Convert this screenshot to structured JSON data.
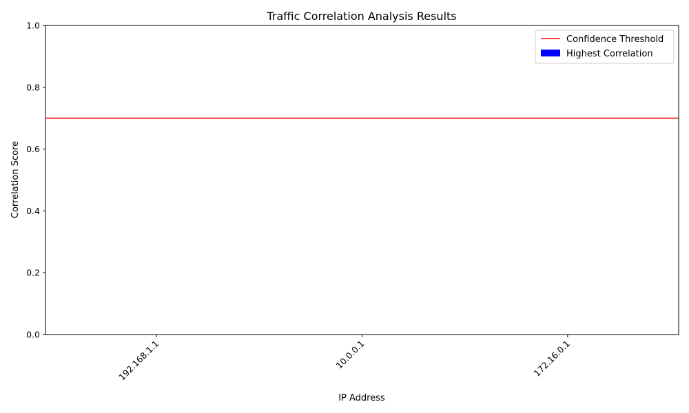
{
  "chart_data": {
    "type": "bar",
    "title": "Traffic Correlation Analysis Results",
    "xlabel": "IP Address",
    "ylabel": "Correlation Score",
    "categories": [
      "192.168.1.1",
      "10.0.0.1",
      "172.16.0.1"
    ],
    "series": [
      {
        "name": "Highest Correlation",
        "values": [
          0,
          0,
          0
        ],
        "color": "#0000ff"
      }
    ],
    "threshold": {
      "name": "Confidence Threshold",
      "value": 0.7,
      "color": "#ff0000"
    },
    "ylim": [
      0,
      1
    ],
    "yticks": [
      "0.0",
      "0.2",
      "0.4",
      "0.6",
      "0.8",
      "1.0"
    ],
    "grid": false,
    "legend_position": "top-right"
  }
}
